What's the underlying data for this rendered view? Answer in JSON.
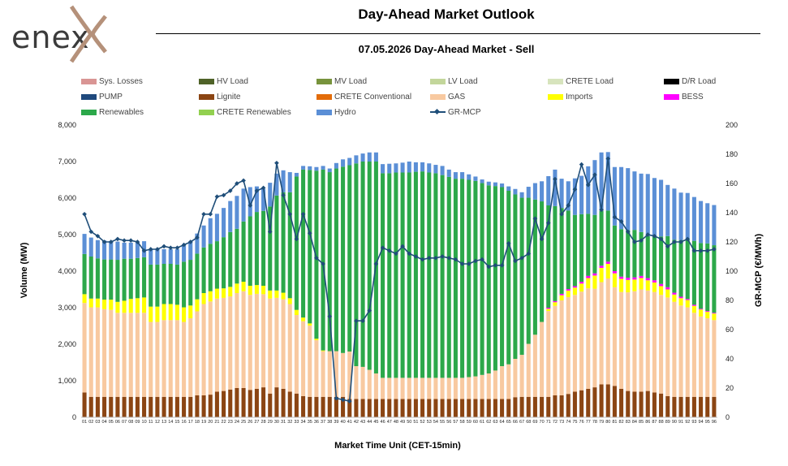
{
  "logo": {
    "text": "enex"
  },
  "header": {
    "title": "Day-Ahead Market Outlook",
    "subtitle": "07.05.2026  Day-Ahead Market - Sell"
  },
  "colors": {
    "Sys. Losses": "#d99594",
    "HV Load": "#4f6228",
    "MV Load": "#77933c",
    "LV Load": "#c3d69b",
    "CRETE Load": "#d7e4bd",
    "D/R Load": "#000000",
    "PUMP": "#1f497d",
    "Lignite": "#8b4513",
    "CRETE Conventional": "#e36c09",
    "GAS": "#f8c9a0",
    "Imports": "#ffff00",
    "BESS": "#ff00ff",
    "Renewables": "#2ca84a",
    "CRETE Renewables": "#92d050",
    "Hydro": "#5b8fd6",
    "GR-MCP": "#1f4e79"
  },
  "legend": [
    "Sys. Losses",
    "HV Load",
    "MV Load",
    "LV Load",
    "CRETE Load",
    "D/R Load",
    "PUMP",
    "Lignite",
    "CRETE Conventional",
    "GAS",
    "Imports",
    "BESS",
    "Renewables",
    "CRETE Renewables",
    "Hydro",
    "GR-MCP"
  ],
  "chart_data": {
    "type": "bar",
    "stacked": true,
    "xlabel": "Market Time Unit (CET-15min)",
    "ylabel": "Volume (MW)",
    "y2label": "GR-MCP (€/MWh)",
    "ylim": [
      0,
      8000
    ],
    "y2lim": [
      0,
      200
    ],
    "yticks": [
      "0",
      "1,000",
      "2,000",
      "3,000",
      "4,000",
      "5,000",
      "6,000",
      "7,000",
      "8,000"
    ],
    "y2ticks": [
      "0",
      "20",
      "40",
      "60",
      "80",
      "100",
      "120",
      "140",
      "160",
      "180",
      "200"
    ],
    "categories": [
      "01",
      "02",
      "03",
      "04",
      "05",
      "06",
      "07",
      "08",
      "09",
      "10",
      "11",
      "12",
      "13",
      "14",
      "15",
      "16",
      "17",
      "18",
      "19",
      "20",
      "21",
      "22",
      "23",
      "24",
      "25",
      "26",
      "27",
      "28",
      "29",
      "30",
      "31",
      "32",
      "33",
      "34",
      "35",
      "36",
      "37",
      "38",
      "39",
      "40",
      "41",
      "42",
      "43",
      "44",
      "45",
      "46",
      "47",
      "48",
      "49",
      "50",
      "51",
      "52",
      "53",
      "54",
      "55",
      "56",
      "57",
      "58",
      "59",
      "60",
      "61",
      "62",
      "63",
      "64",
      "65",
      "66",
      "67",
      "68",
      "69",
      "70",
      "71",
      "72",
      "73",
      "74",
      "75",
      "76",
      "77",
      "78",
      "79",
      "80",
      "81",
      "82",
      "83",
      "84",
      "85",
      "86",
      "87",
      "88",
      "89",
      "90",
      "91",
      "92",
      "93",
      "94",
      "95",
      "96"
    ],
    "grid": false,
    "legend_position": "top",
    "series": [
      {
        "name": "Lignite",
        "axis": "left",
        "values": [
          680,
          560,
          560,
          560,
          560,
          560,
          560,
          560,
          560,
          560,
          560,
          560,
          560,
          560,
          560,
          560,
          560,
          600,
          600,
          620,
          700,
          720,
          760,
          800,
          800,
          750,
          780,
          820,
          650,
          820,
          780,
          700,
          650,
          580,
          560,
          560,
          560,
          560,
          560,
          560,
          500,
          500,
          500,
          500,
          500,
          500,
          500,
          500,
          500,
          500,
          500,
          500,
          500,
          500,
          500,
          500,
          500,
          500,
          500,
          500,
          500,
          500,
          500,
          500,
          500,
          550,
          560,
          560,
          560,
          560,
          560,
          600,
          600,
          640,
          700,
          740,
          780,
          820,
          900,
          900,
          860,
          780,
          720,
          700,
          700,
          720,
          680,
          650,
          580,
          560,
          560,
          560,
          560,
          560,
          560,
          560
        ]
      },
      {
        "name": "GAS",
        "axis": "left",
        "values": [
          2450,
          2450,
          2450,
          2400,
          2380,
          2300,
          2300,
          2300,
          2300,
          2300,
          2050,
          2050,
          2100,
          2100,
          2100,
          2050,
          2150,
          2300,
          2500,
          2550,
          2550,
          2550,
          2550,
          2600,
          2650,
          2600,
          2600,
          2550,
          2600,
          2450,
          2450,
          2400,
          2150,
          2050,
          1950,
          1550,
          1250,
          1250,
          1250,
          1200,
          1300,
          900,
          880,
          800,
          700,
          580,
          580,
          580,
          580,
          580,
          580,
          580,
          580,
          580,
          580,
          580,
          580,
          580,
          600,
          620,
          660,
          700,
          780,
          900,
          950,
          1050,
          1150,
          1450,
          1700,
          2050,
          2350,
          2450,
          2600,
          2650,
          2650,
          2700,
          2750,
          2700,
          2800,
          2900,
          2700,
          2650,
          2700,
          2750,
          2800,
          2750,
          2750,
          2700,
          2700,
          2600,
          2500,
          2450,
          2300,
          2200,
          2150,
          2100
        ]
      },
      {
        "name": "Imports",
        "axis": "left",
        "values": [
          240,
          240,
          240,
          260,
          280,
          300,
          330,
          380,
          400,
          420,
          420,
          420,
          440,
          440,
          420,
          400,
          350,
          330,
          300,
          280,
          270,
          260,
          260,
          260,
          260,
          250,
          240,
          230,
          220,
          200,
          180,
          160,
          140,
          100,
          60,
          40,
          20,
          0,
          0,
          0,
          0,
          0,
          0,
          0,
          0,
          0,
          0,
          0,
          0,
          0,
          0,
          0,
          0,
          0,
          0,
          0,
          0,
          0,
          0,
          0,
          0,
          0,
          0,
          0,
          0,
          0,
          0,
          0,
          0,
          0,
          60,
          100,
          140,
          180,
          200,
          220,
          280,
          360,
          390,
          400,
          380,
          360,
          340,
          320,
          310,
          280,
          260,
          240,
          220,
          200,
          200,
          200,
          190,
          190,
          180,
          180
        ]
      },
      {
        "name": "BESS",
        "axis": "left",
        "values": [
          0,
          0,
          0,
          0,
          0,
          0,
          0,
          0,
          0,
          0,
          0,
          0,
          0,
          0,
          0,
          0,
          0,
          0,
          0,
          0,
          0,
          0,
          0,
          0,
          0,
          0,
          0,
          0,
          0,
          0,
          0,
          0,
          0,
          0,
          0,
          0,
          0,
          0,
          0,
          0,
          0,
          0,
          0,
          0,
          0,
          0,
          0,
          0,
          0,
          0,
          0,
          0,
          0,
          0,
          0,
          0,
          0,
          0,
          0,
          0,
          0,
          0,
          0,
          0,
          0,
          0,
          0,
          0,
          0,
          0,
          30,
          30,
          40,
          40,
          40,
          50,
          60,
          60,
          60,
          60,
          60,
          60,
          60,
          60,
          60,
          60,
          60,
          60,
          60,
          50,
          40,
          30,
          30,
          20,
          20,
          20
        ]
      },
      {
        "name": "Renewables",
        "axis": "left",
        "values": [
          1100,
          1150,
          1100,
          1100,
          1100,
          1150,
          1150,
          1100,
          1100,
          1100,
          1150,
          1150,
          1100,
          1100,
          1100,
          1250,
          1250,
          1250,
          1250,
          1300,
          1300,
          1400,
          1500,
          1500,
          1650,
          1900,
          2000,
          2050,
          2300,
          2600,
          2750,
          2900,
          3650,
          4050,
          4200,
          4600,
          4950,
          4900,
          5000,
          5100,
          5100,
          5550,
          5620,
          5700,
          5800,
          5600,
          5600,
          5620,
          5620,
          5620,
          5640,
          5650,
          5620,
          5600,
          5550,
          5500,
          5450,
          5450,
          5400,
          5350,
          5250,
          5150,
          5050,
          4900,
          4750,
          4500,
          4300,
          4000,
          3700,
          3300,
          2800,
          2600,
          2350,
          2150,
          1950,
          1850,
          1700,
          1600,
          1500,
          1400,
          1250,
          1300,
          1300,
          1300,
          1200,
          1150,
          1200,
          1300,
          1400,
          1450,
          1550,
          1650,
          1750,
          1800,
          1850,
          1850
        ]
      },
      {
        "name": "Hydro",
        "axis": "left",
        "values": [
          550,
          520,
          500,
          520,
          500,
          500,
          440,
          440,
          450,
          440,
          420,
          420,
          400,
          400,
          420,
          450,
          500,
          550,
          600,
          700,
          750,
          800,
          850,
          900,
          900,
          800,
          700,
          600,
          650,
          600,
          600,
          550,
          100,
          100,
          100,
          100,
          100,
          100,
          150,
          200,
          200,
          220,
          220,
          250,
          250,
          250,
          260,
          250,
          270,
          300,
          260,
          250,
          250,
          230,
          250,
          200,
          180,
          180,
          150,
          120,
          100,
          100,
          100,
          100,
          120,
          150,
          150,
          300,
          450,
          550,
          800,
          1000,
          800,
          800,
          1000,
          1050,
          1300,
          1500,
          1600,
          1600,
          1600,
          1700,
          1700,
          1600,
          1600,
          1700,
          1600,
          1550,
          1400,
          1400,
          1300,
          1250,
          1200,
          1150,
          1100,
          1100
        ]
      },
      {
        "name": "GR-MCP",
        "axis": "right",
        "values": [
          139,
          127,
          124,
          120,
          120,
          122,
          121,
          121,
          120,
          114,
          115,
          115,
          117,
          116,
          116,
          118,
          120,
          123,
          139,
          139,
          151,
          152,
          155,
          160,
          162,
          145,
          155,
          157,
          127,
          174,
          152,
          139,
          122,
          139,
          126,
          109,
          105,
          69,
          13,
          12,
          11,
          66,
          66,
          73,
          105,
          116,
          114,
          112,
          117,
          112,
          110,
          108,
          109,
          109,
          110,
          109,
          108,
          105,
          105,
          107,
          108,
          103,
          104,
          104,
          119,
          107,
          109,
          112,
          136,
          122,
          133,
          163,
          139,
          145,
          156,
          173,
          159,
          166,
          142,
          177,
          137,
          134,
          127,
          120,
          121,
          125,
          124,
          122,
          117,
          120,
          120,
          122,
          114,
          114,
          114,
          115
        ]
      }
    ]
  }
}
